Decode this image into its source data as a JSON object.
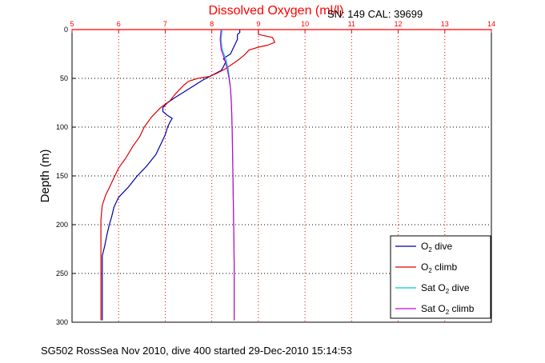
{
  "chart_data": {
    "type": "line",
    "title": "Dissolved Oxygen (ml/l)",
    "ylabel": "Depth (m)",
    "xlim": [
      5,
      14
    ],
    "ylim": [
      0,
      300
    ],
    "y_reversed": true,
    "x_axis_position": "top",
    "x_ticks": [
      "5",
      "6",
      "7",
      "8",
      "9",
      "10",
      "11",
      "12",
      "13",
      "14"
    ],
    "y_ticks": [
      "0",
      "50",
      "100",
      "150",
      "200",
      "250",
      "300"
    ],
    "grid": true,
    "legend_position": "bottom-right",
    "series": [
      {
        "name": "O2 dive",
        "color": "#0000aa",
        "points": [
          [
            8.6,
            0
          ],
          [
            8.6,
            3
          ],
          [
            8.55,
            5
          ],
          [
            8.55,
            10
          ],
          [
            8.5,
            15
          ],
          [
            8.45,
            20
          ],
          [
            8.4,
            25
          ],
          [
            8.3,
            28
          ],
          [
            8.25,
            30
          ],
          [
            8.3,
            33
          ],
          [
            8.25,
            38
          ],
          [
            8.2,
            42
          ],
          [
            8.0,
            47
          ],
          [
            7.8,
            52
          ],
          [
            7.6,
            58
          ],
          [
            7.4,
            64
          ],
          [
            7.2,
            70
          ],
          [
            7.05,
            75
          ],
          [
            6.95,
            80
          ],
          [
            6.95,
            84
          ],
          [
            7.05,
            88
          ],
          [
            7.15,
            91
          ],
          [
            7.1,
            95
          ],
          [
            7.05,
            100
          ],
          [
            7.0,
            108
          ],
          [
            6.9,
            118
          ],
          [
            6.8,
            128
          ],
          [
            6.6,
            140
          ],
          [
            6.4,
            150
          ],
          [
            6.2,
            162
          ],
          [
            6.0,
            172
          ],
          [
            5.9,
            182
          ],
          [
            5.85,
            192
          ],
          [
            5.8,
            200
          ],
          [
            5.75,
            210
          ],
          [
            5.7,
            222
          ],
          [
            5.65,
            232
          ],
          [
            5.65,
            242
          ],
          [
            5.65,
            255
          ],
          [
            5.65,
            270
          ],
          [
            5.65,
            285
          ],
          [
            5.65,
            298
          ]
        ]
      },
      {
        "name": "O2 climb",
        "color": "#dd0000",
        "points": [
          [
            9.0,
            0
          ],
          [
            9.0,
            5
          ],
          [
            9.3,
            8
          ],
          [
            9.35,
            13
          ],
          [
            9.2,
            16
          ],
          [
            9.0,
            18
          ],
          [
            8.8,
            21
          ],
          [
            8.7,
            26
          ],
          [
            8.6,
            30
          ],
          [
            8.45,
            35
          ],
          [
            8.3,
            40
          ],
          [
            8.1,
            45
          ],
          [
            7.95,
            48
          ],
          [
            7.7,
            50
          ],
          [
            7.5,
            53
          ],
          [
            7.4,
            57
          ],
          [
            7.3,
            62
          ],
          [
            7.2,
            67
          ],
          [
            7.1,
            73
          ],
          [
            6.9,
            80
          ],
          [
            6.7,
            90
          ],
          [
            6.55,
            100
          ],
          [
            6.45,
            110
          ],
          [
            6.3,
            120
          ],
          [
            6.15,
            132
          ],
          [
            6.0,
            142
          ],
          [
            5.9,
            152
          ],
          [
            5.8,
            162
          ],
          [
            5.72,
            170
          ],
          [
            5.65,
            180
          ],
          [
            5.62,
            195
          ],
          [
            5.62,
            210
          ],
          [
            5.62,
            225
          ],
          [
            5.62,
            240
          ],
          [
            5.62,
            260
          ],
          [
            5.62,
            280
          ],
          [
            5.62,
            298
          ]
        ]
      },
      {
        "name": "Sat O2 dive",
        "color": "#00cccc",
        "points": [
          [
            8.22,
            0
          ],
          [
            8.2,
            10
          ],
          [
            8.22,
            20
          ],
          [
            8.3,
            30
          ],
          [
            8.35,
            40
          ],
          [
            8.38,
            50
          ],
          [
            8.4,
            60
          ],
          [
            8.42,
            75
          ],
          [
            8.43,
            90
          ],
          [
            8.44,
            110
          ],
          [
            8.45,
            140
          ],
          [
            8.46,
            170
          ],
          [
            8.47,
            200
          ],
          [
            8.48,
            240
          ],
          [
            8.48,
            270
          ],
          [
            8.48,
            298
          ]
        ]
      },
      {
        "name": "Sat O2 climb",
        "color": "#cc00cc",
        "points": [
          [
            8.2,
            0
          ],
          [
            8.18,
            10
          ],
          [
            8.2,
            20
          ],
          [
            8.27,
            30
          ],
          [
            8.33,
            40
          ],
          [
            8.37,
            50
          ],
          [
            8.4,
            60
          ],
          [
            8.42,
            75
          ],
          [
            8.43,
            90
          ],
          [
            8.44,
            110
          ],
          [
            8.45,
            140
          ],
          [
            8.46,
            170
          ],
          [
            8.47,
            200
          ],
          [
            8.48,
            240
          ],
          [
            8.48,
            270
          ],
          [
            8.48,
            298
          ]
        ]
      }
    ]
  },
  "annotation": "SN: 149  CAL: 39699",
  "footer": "SG502 RossSea Nov 2010, dive 400 started 29-Dec-2010 15:14:53",
  "legend": [
    {
      "prefix": "O",
      "sub": "2",
      "suffix": " dive",
      "color": "#0000aa"
    },
    {
      "prefix": "O",
      "sub": "2",
      "suffix": " climb",
      "color": "#dd0000"
    },
    {
      "prefix": "Sat O",
      "sub": "2",
      "suffix": " dive",
      "color": "#00cccc"
    },
    {
      "prefix": "Sat O",
      "sub": "2",
      "suffix": " climb",
      "color": "#cc00cc"
    }
  ]
}
